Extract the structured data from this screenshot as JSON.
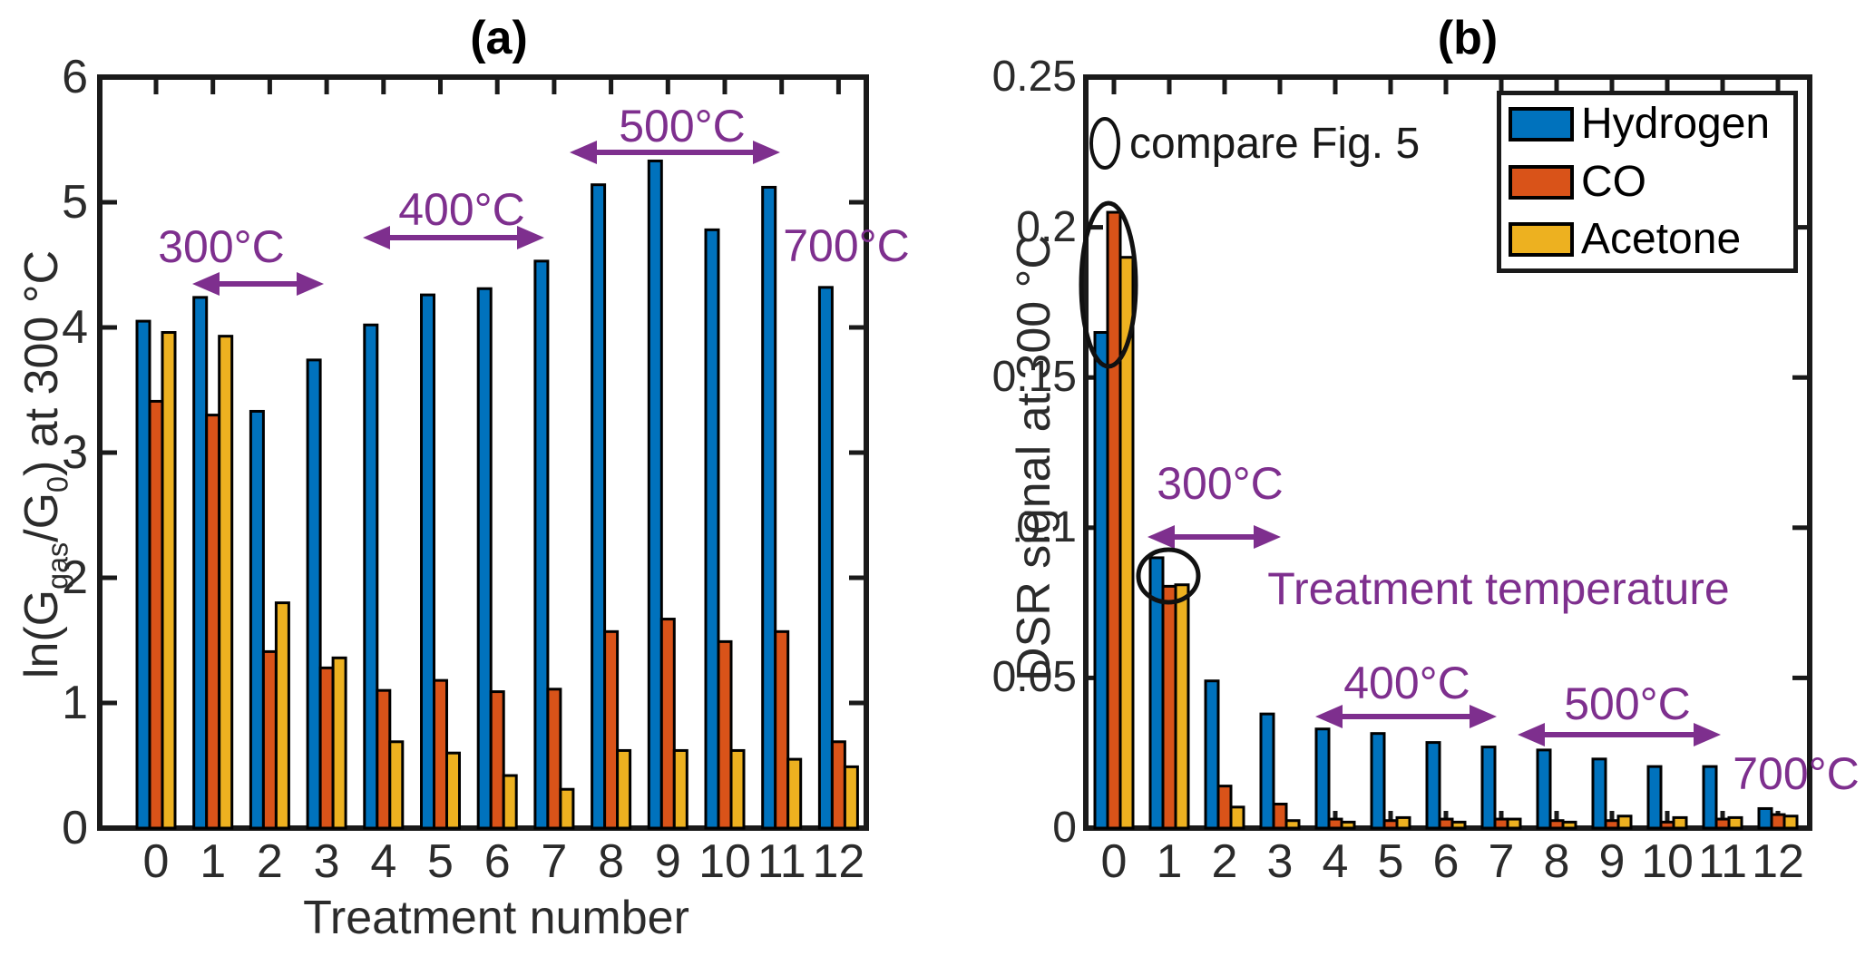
{
  "colors": {
    "hydrogen": "#0072BD",
    "co": "#D95319",
    "acetone": "#EDB120",
    "annotation_purple": "#7E2F8E",
    "axis": "#1a1a1a"
  },
  "legend": {
    "items": [
      {
        "label": "Hydrogen",
        "color": "#0072BD"
      },
      {
        "label": "CO",
        "color": "#D95319"
      },
      {
        "label": "Acetone",
        "color": "#EDB120"
      }
    ]
  },
  "chart_data": [
    {
      "id": "a",
      "type": "bar",
      "title": "(a)",
      "xlabel": "Treatment number",
      "ylabel": "ln(G_gas/G_0) at 300 °C",
      "ylabel_segments": [
        {
          "t": "ln(G"
        },
        {
          "t": "gas",
          "sub": true
        },
        {
          "t": "/G"
        },
        {
          "t": "0",
          "sub": true
        },
        {
          "t": ") at 300 °C"
        }
      ],
      "ylim": [
        0,
        6
      ],
      "ytick_labels": [
        "0",
        "1",
        "2",
        "3",
        "4",
        "5",
        "6"
      ],
      "categories": [
        "0",
        "1",
        "2",
        "3",
        "4",
        "5",
        "6",
        "7",
        "8",
        "9",
        "10",
        "11",
        "12"
      ],
      "series": [
        {
          "name": "Hydrogen",
          "values": [
            4.05,
            4.24,
            3.33,
            3.74,
            4.02,
            4.26,
            4.31,
            4.53,
            5.14,
            5.33,
            4.78,
            5.12,
            4.32
          ]
        },
        {
          "name": "CO",
          "values": [
            3.41,
            3.3,
            1.41,
            1.28,
            1.1,
            1.18,
            1.09,
            1.11,
            1.57,
            1.67,
            1.49,
            1.57,
            0.69
          ]
        },
        {
          "name": "Acetone",
          "values": [
            3.96,
            3.93,
            1.8,
            1.36,
            0.69,
            0.6,
            0.42,
            0.31,
            0.62,
            0.62,
            0.62,
            0.55,
            0.49
          ]
        }
      ],
      "annotations": {
        "t300": "300°C",
        "t400": "400°C",
        "t500": "500°C",
        "t700": "700°C"
      }
    },
    {
      "id": "b",
      "type": "bar",
      "title": "(b)",
      "xlabel": "",
      "ylabel": "DSR signal at 300 °C",
      "ylim": [
        0,
        0.25
      ],
      "ytick_labels": [
        "0",
        "0.05",
        "0.1",
        "0.15",
        "0.2",
        "0.25"
      ],
      "categories": [
        "0",
        "1",
        "2",
        "3",
        "4",
        "5",
        "6",
        "7",
        "8",
        "9",
        "10",
        "11",
        "12"
      ],
      "series": [
        {
          "name": "Hydrogen",
          "values": [
            0.165,
            0.09,
            0.049,
            0.038,
            0.033,
            0.0315,
            0.0285,
            0.027,
            0.026,
            0.023,
            0.0205,
            0.0205,
            0.0065
          ]
        },
        {
          "name": "CO",
          "values": [
            0.205,
            0.0805,
            0.014,
            0.008,
            0.003,
            0.0025,
            0.003,
            0.003,
            0.0025,
            0.0025,
            0.002,
            0.003,
            0.0045
          ]
        },
        {
          "name": "Acetone",
          "values": [
            0.19,
            0.081,
            0.007,
            0.0025,
            0.002,
            0.0035,
            0.002,
            0.003,
            0.002,
            0.004,
            0.0035,
            0.0035,
            0.004
          ]
        }
      ],
      "annotations": {
        "compare": "compare Fig. 5",
        "t300": "300°C",
        "treatment_temperature": "Treatment temperature",
        "t400": "400°C",
        "t500": "500°C",
        "t700": "700°C"
      },
      "legend_position": "top-right"
    }
  ]
}
